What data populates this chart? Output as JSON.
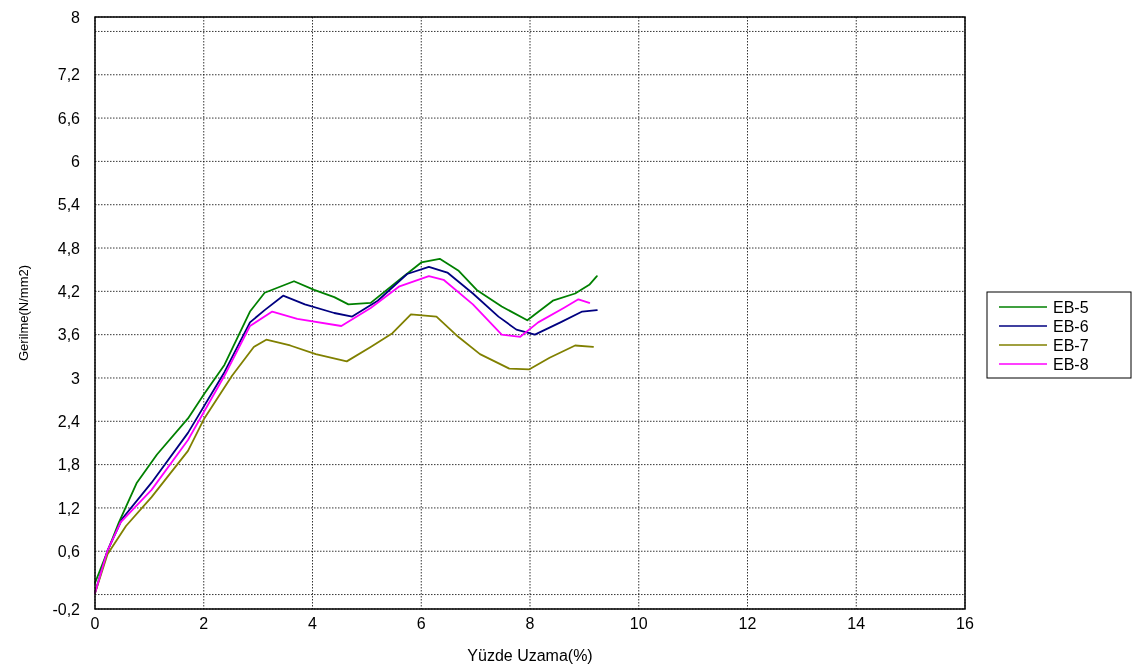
{
  "chart_data": {
    "type": "line",
    "xlabel": "Yüzde Uzama(%)",
    "ylabel": "Gerilme(N/mm2)",
    "xlim": [
      0,
      16
    ],
    "xticks": [
      0,
      2,
      4,
      6,
      8,
      10,
      12,
      14,
      16
    ],
    "ylim": [
      -0.2,
      8
    ],
    "yticks": [
      {
        "value": -0.2,
        "label": "-0,2"
      },
      {
        "value": 0,
        "label": null
      },
      {
        "value": 0.6,
        "label": "0,6"
      },
      {
        "value": 1.2,
        "label": "1,2"
      },
      {
        "value": 1.8,
        "label": "1,8"
      },
      {
        "value": 2.4,
        "label": "2,4"
      },
      3,
      {
        "value": 3.6,
        "label": "3,6"
      },
      {
        "value": 4.2,
        "label": "4,2"
      },
      {
        "value": 4.8,
        "label": "4,8"
      },
      {
        "value": 5.4,
        "label": "5,4"
      },
      6,
      {
        "value": 6.6,
        "label": "6,6"
      },
      {
        "value": 7.2,
        "label": "7,2"
      },
      {
        "value": 7.8,
        "label": null
      },
      8
    ],
    "grid": true,
    "legend": "right",
    "line_style": "solid",
    "marker": "none",
    "series": [
      {
        "name": "EB-5",
        "color": "#008000",
        "x": [
          0,
          0.44,
          0.77,
          1.14,
          1.71,
          2.01,
          2.38,
          2.85,
          3.12,
          3.66,
          4.03,
          4.4,
          4.66,
          5.07,
          5.6,
          6.0,
          6.34,
          6.68,
          7.02,
          7.48,
          7.95,
          8.42,
          8.83,
          9.09,
          9.23
        ],
        "values": [
          0.16,
          1.0,
          1.55,
          1.94,
          2.44,
          2.78,
          3.18,
          3.92,
          4.18,
          4.34,
          4.22,
          4.12,
          4.02,
          4.04,
          4.36,
          4.6,
          4.65,
          4.49,
          4.22,
          3.99,
          3.8,
          4.07,
          4.17,
          4.29,
          4.41
        ]
      },
      {
        "name": "EB-6",
        "color": "#000080",
        "x": [
          0,
          0.23,
          0.5,
          1.04,
          1.71,
          2.38,
          2.85,
          3.12,
          3.46,
          3.86,
          4.4,
          4.73,
          5.2,
          5.74,
          6.14,
          6.48,
          6.95,
          7.42,
          7.75,
          8.09,
          8.56,
          8.96,
          9.23
        ],
        "values": [
          0.02,
          0.61,
          1.05,
          1.55,
          2.24,
          3.08,
          3.77,
          3.94,
          4.14,
          4.02,
          3.9,
          3.85,
          4.07,
          4.44,
          4.54,
          4.46,
          4.17,
          3.85,
          3.67,
          3.6,
          3.77,
          3.92,
          3.94
        ]
      },
      {
        "name": "EB-7",
        "color": "#808000",
        "x": [
          0,
          0.23,
          0.57,
          1.04,
          1.71,
          2.01,
          2.52,
          2.92,
          3.15,
          3.59,
          4.06,
          4.63,
          5.07,
          5.47,
          5.81,
          6.28,
          6.68,
          7.08,
          7.62,
          7.99,
          8.36,
          8.83,
          9.16
        ],
        "values": [
          0.02,
          0.56,
          0.95,
          1.35,
          1.99,
          2.44,
          3.03,
          3.43,
          3.53,
          3.45,
          3.33,
          3.23,
          3.43,
          3.62,
          3.88,
          3.85,
          3.57,
          3.33,
          3.13,
          3.12,
          3.28,
          3.45,
          3.43
        ]
      },
      {
        "name": "EB-8",
        "color": "#ff00ff",
        "x": [
          0,
          0.23,
          0.47,
          1.04,
          1.71,
          2.38,
          2.85,
          3.26,
          3.72,
          4.53,
          5.07,
          5.6,
          6.14,
          6.41,
          6.95,
          7.48,
          7.82,
          8.15,
          8.62,
          8.89,
          9.09
        ],
        "values": [
          0.02,
          0.61,
          1.0,
          1.45,
          2.14,
          3.03,
          3.72,
          3.92,
          3.82,
          3.72,
          3.97,
          4.27,
          4.41,
          4.36,
          4.02,
          3.6,
          3.57,
          3.77,
          3.97,
          4.09,
          4.04
        ]
      }
    ]
  }
}
